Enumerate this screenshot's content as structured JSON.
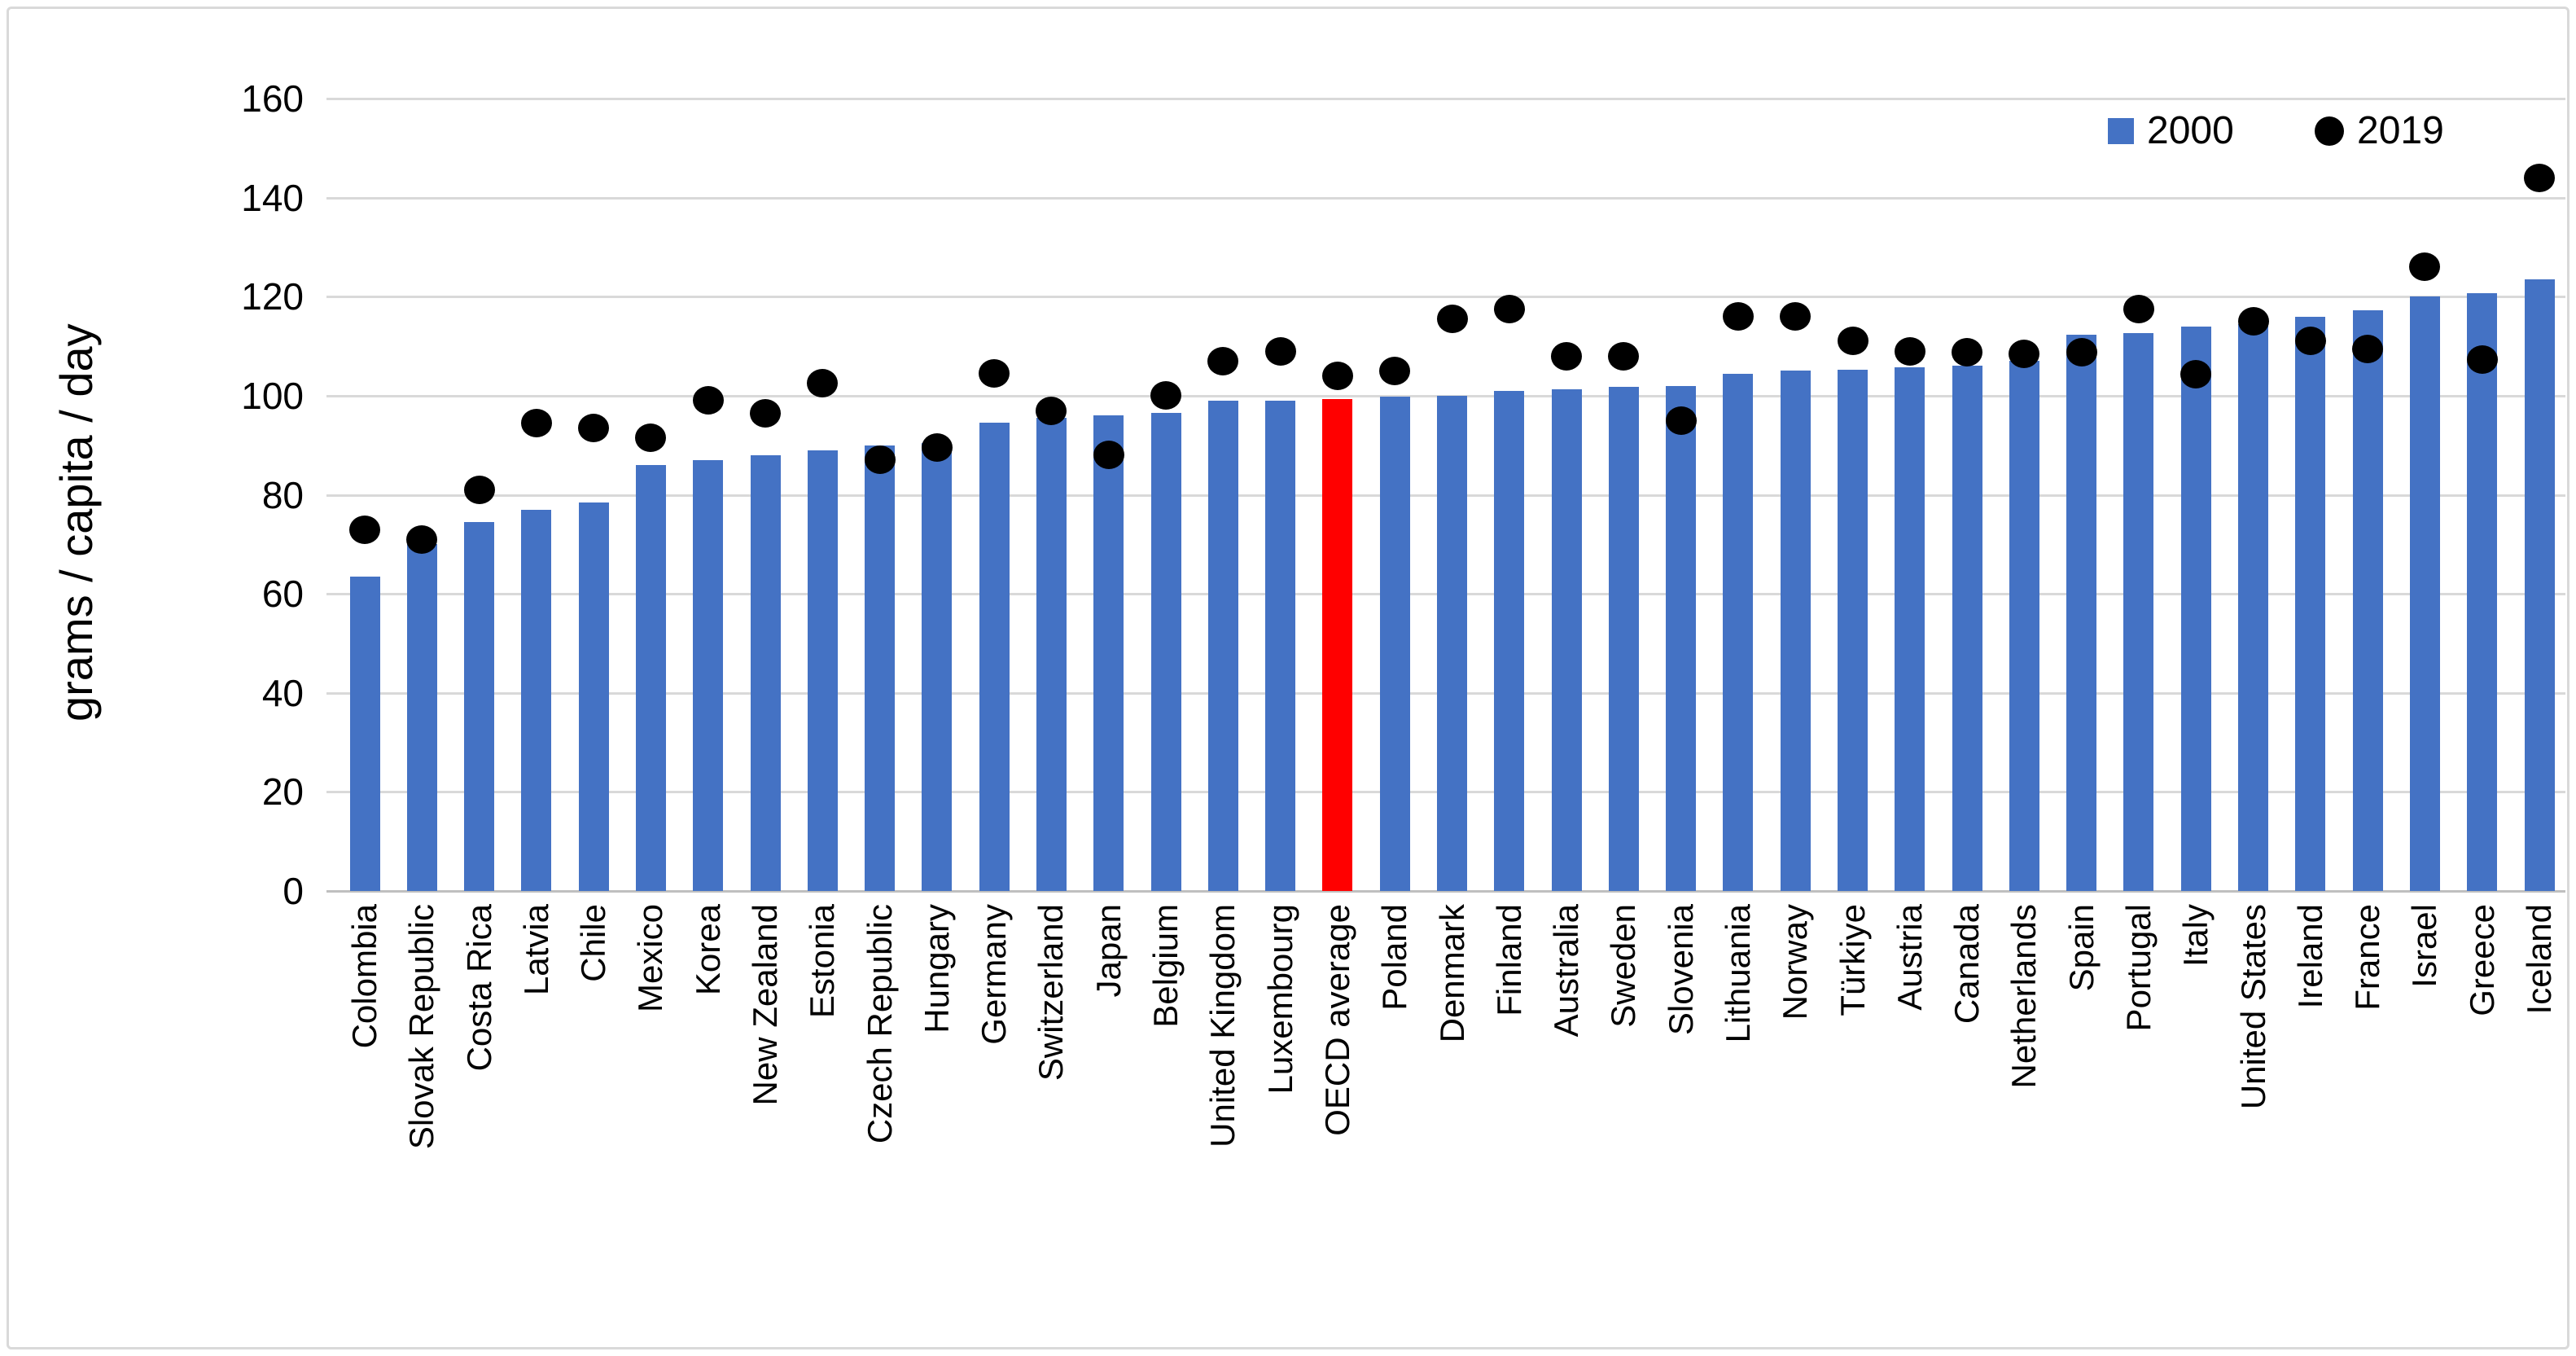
{
  "figure": {
    "border_color": "#d9d9d9",
    "background": "#ffffff"
  },
  "chart_data": {
    "type": "bar",
    "title": "",
    "xlabel": "",
    "ylabel": "grams / capita / day",
    "ylim": [
      0,
      160
    ],
    "yticks": [
      0,
      20,
      40,
      60,
      80,
      100,
      120,
      140,
      160
    ],
    "grid": "horizontal",
    "legend_position": "top-right",
    "categories": [
      "Colombia",
      "Slovak Republic",
      "Costa Rica",
      "Latvia",
      "Chile",
      "Mexico",
      "Korea",
      "New Zealand",
      "Estonia",
      "Czech Republic",
      "Hungary",
      "Germany",
      "Switzerland",
      "Japan",
      "Belgium",
      "United Kingdom",
      "Luxembourg",
      "OECD average",
      "Poland",
      "Denmark",
      "Finland",
      "Australia",
      "Sweden",
      "Slovenia",
      "Lithuania",
      "Norway",
      "Türkiye",
      "Austria",
      "Canada",
      "Netherlands",
      "Spain",
      "Portugal",
      "Italy",
      "United States",
      "Ireland",
      "France",
      "Israel",
      "Greece",
      "Iceland"
    ],
    "highlight_category": "OECD average",
    "highlight_color": "#ff0000",
    "series": [
      {
        "name": "2000",
        "type": "bar",
        "color": "#4472c4",
        "values": [
          63.5,
          70,
          74.5,
          77,
          78.5,
          86,
          87,
          88,
          89,
          90,
          90.5,
          94.5,
          95.5,
          96,
          96.5,
          99,
          99,
          99.3,
          99.8,
          100,
          101,
          101.3,
          101.8,
          102,
          104.5,
          105,
          105.3,
          105.7,
          106,
          107,
          112.3,
          112.7,
          114,
          114.5,
          116,
          117.3,
          120,
          120.7,
          123.5
        ]
      },
      {
        "name": "2019",
        "type": "scatter",
        "color": "#000000",
        "values": [
          73,
          71,
          81,
          94.5,
          93.5,
          91.5,
          99,
          96.5,
          102.5,
          87,
          89.5,
          104.5,
          97,
          88,
          100,
          107,
          109,
          104,
          105,
          115.5,
          117.5,
          108,
          108,
          95,
          116,
          116,
          111,
          109,
          108.7,
          108.5,
          108.8,
          117.5,
          104.3,
          115,
          111,
          109.5,
          126,
          107.3,
          144
        ]
      }
    ]
  },
  "legend": {
    "items": [
      {
        "label": "2000",
        "marker": "square",
        "color": "#4472c4"
      },
      {
        "label": "2019",
        "marker": "circle",
        "color": "#000000"
      }
    ]
  }
}
